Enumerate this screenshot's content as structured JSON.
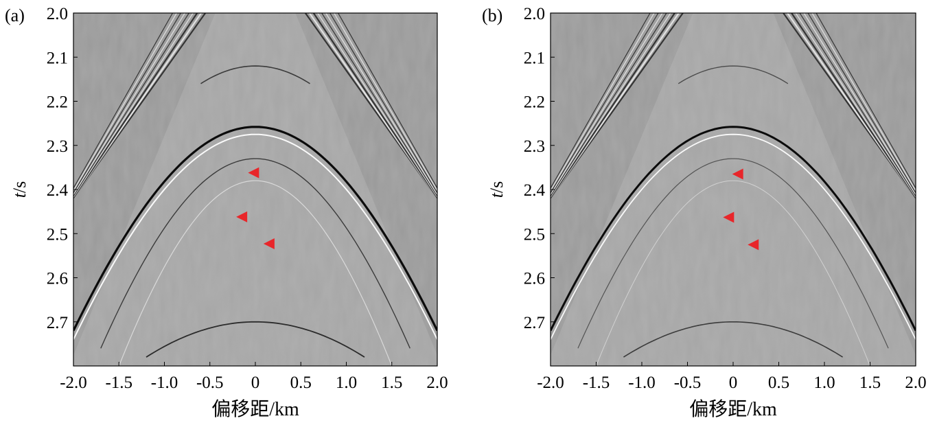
{
  "chart_data": [
    {
      "type": "heatmap",
      "panel_label": "(a)",
      "xlabel": "偏移距/km",
      "ylabel_italic": "t",
      "ylabel_unit": "/s",
      "xlim": [
        -2.0,
        2.0
      ],
      "ylim": [
        2.0,
        2.8
      ],
      "xticks": [
        -2.0,
        -1.5,
        -1.0,
        -0.5,
        0,
        0.5,
        1.0,
        1.5,
        2.0
      ],
      "xtick_labels": [
        "-2.0",
        "-1.5",
        "-1.0",
        "-0.5",
        "0",
        "0.5",
        "1.0",
        "1.5",
        "2.0"
      ],
      "yticks": [
        2.0,
        2.1,
        2.2,
        2.3,
        2.4,
        2.5,
        2.6,
        2.7
      ],
      "ytick_labels": [
        "2.0",
        "2.1",
        "2.2",
        "2.3",
        "2.4",
        "2.5",
        "2.6",
        "2.7"
      ],
      "colormap": "grayscale",
      "events": [
        {
          "apex_x": 0,
          "apex_t": 2.258,
          "half_width_km": 2.0,
          "end_t": 2.72,
          "amplitude": -1.0,
          "line": 3.2
        },
        {
          "apex_x": 0,
          "apex_t": 2.275,
          "half_width_km": 2.0,
          "end_t": 2.74,
          "amplitude": 0.8,
          "line": 2.0
        },
        {
          "apex_x": 0,
          "apex_t": 2.33,
          "half_width_km": 1.7,
          "end_t": 2.76,
          "amplitude": -0.5,
          "line": 1.4
        },
        {
          "apex_x": 0,
          "apex_t": 2.38,
          "half_width_km": 1.5,
          "end_t": 2.8,
          "amplitude": 0.4,
          "line": 1.2
        },
        {
          "apex_x": 0,
          "apex_t": 2.12,
          "half_width_km": 0.6,
          "end_t": 2.16,
          "amplitude": -0.5,
          "line": 1.6
        },
        {
          "apex_x": 0,
          "apex_t": 2.7,
          "half_width_km": 1.2,
          "end_t": 2.78,
          "amplitude": -0.6,
          "line": 1.8
        }
      ],
      "markers": [
        {
          "x": -0.02,
          "t": 2.362
        },
        {
          "x": -0.15,
          "t": 2.462
        },
        {
          "x": 0.15,
          "t": 2.523
        }
      ],
      "marker_color": "#e8262a"
    },
    {
      "type": "heatmap",
      "panel_label": "(b)",
      "xlabel": "偏移距/km",
      "ylabel_italic": "t",
      "ylabel_unit": "/s",
      "xlim": [
        -2.0,
        2.0
      ],
      "ylim": [
        2.0,
        2.8
      ],
      "xticks": [
        -2.0,
        -1.5,
        -1.0,
        -0.5,
        0,
        0.5,
        1.0,
        1.5,
        2.0
      ],
      "xtick_labels": [
        "-2.0",
        "-1.5",
        "-1.0",
        "-0.5",
        "0",
        "0.5",
        "1.0",
        "1.5",
        "2.0"
      ],
      "yticks": [
        2.0,
        2.1,
        2.2,
        2.3,
        2.4,
        2.5,
        2.6,
        2.7
      ],
      "ytick_labels": [
        "2.0",
        "2.1",
        "2.2",
        "2.3",
        "2.4",
        "2.5",
        "2.6",
        "2.7"
      ],
      "colormap": "grayscale",
      "events": [
        {
          "apex_x": 0,
          "apex_t": 2.258,
          "half_width_km": 2.0,
          "end_t": 2.72,
          "amplitude": -1.0,
          "line": 3.0
        },
        {
          "apex_x": 0,
          "apex_t": 2.275,
          "half_width_km": 2.0,
          "end_t": 2.74,
          "amplitude": 0.8,
          "line": 1.8
        },
        {
          "apex_x": 0,
          "apex_t": 2.33,
          "half_width_km": 1.7,
          "end_t": 2.76,
          "amplitude": -0.35,
          "line": 1.2
        },
        {
          "apex_x": 0,
          "apex_t": 2.38,
          "half_width_km": 1.5,
          "end_t": 2.8,
          "amplitude": 0.3,
          "line": 1.0
        },
        {
          "apex_x": 0,
          "apex_t": 2.12,
          "half_width_km": 0.6,
          "end_t": 2.16,
          "amplitude": -0.4,
          "line": 1.4
        },
        {
          "apex_x": 0,
          "apex_t": 2.7,
          "half_width_km": 1.2,
          "end_t": 2.78,
          "amplitude": -0.5,
          "line": 1.6
        }
      ],
      "markers": [
        {
          "x": 0.05,
          "t": 2.365
        },
        {
          "x": -0.05,
          "t": 2.463
        },
        {
          "x": 0.22,
          "t": 2.525
        }
      ],
      "marker_color": "#e8262a"
    }
  ]
}
